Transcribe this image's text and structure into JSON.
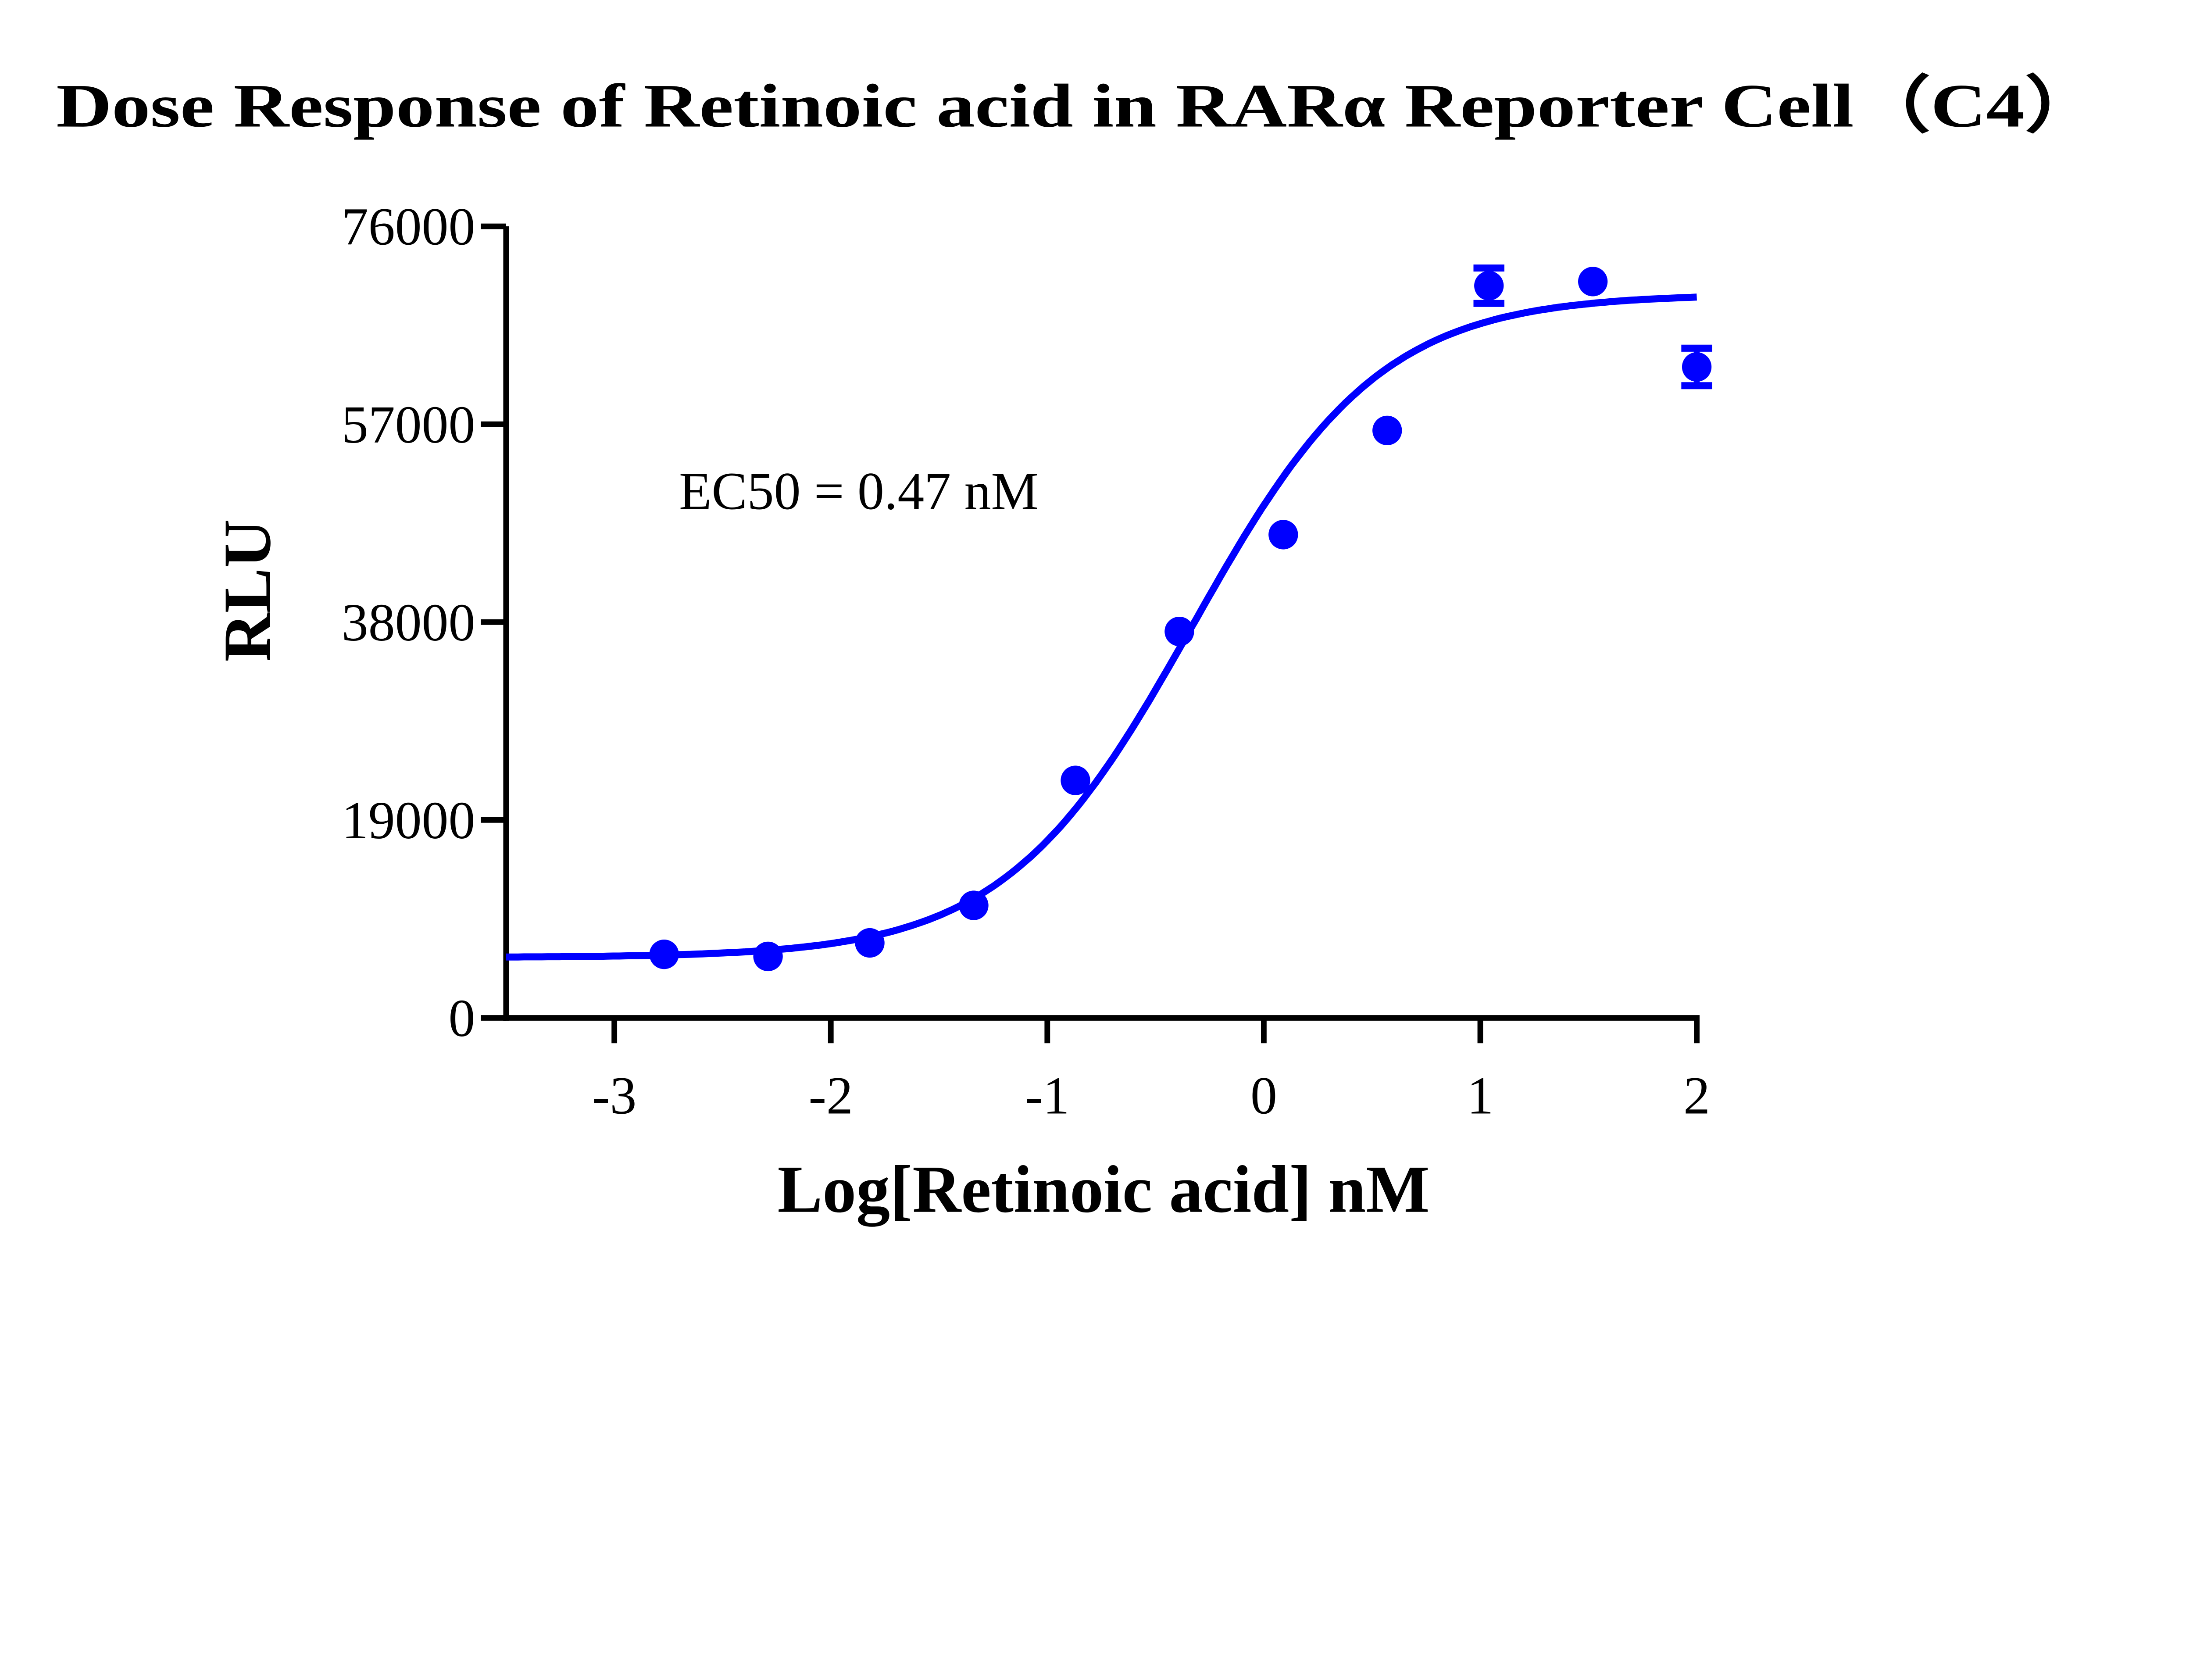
{
  "chart_data": {
    "type": "scatter",
    "title": "Dose Response of Retinoic acid in RARα Reporter Cell（C4）",
    "xlabel": "Log[Retinoic acid] nM",
    "ylabel": "RLU",
    "xlim": [
      -3.5,
      2
    ],
    "ylim": [
      0,
      76000
    ],
    "xticks": [
      -3,
      -2,
      -1,
      0,
      1,
      2
    ],
    "xtick_labels": [
      "-3",
      "-2",
      "-1",
      "0",
      "1",
      "2"
    ],
    "yticks": [
      0,
      19000,
      38000,
      57000,
      76000
    ],
    "ytick_labels": [
      "0",
      "19000",
      "38000",
      "57000",
      "76000"
    ],
    "grid": false,
    "color": "#0000ff",
    "annotation": "EC50 = 0.47 nM",
    "points": [
      {
        "x": -2.77,
        "y": 6100,
        "err": 0
      },
      {
        "x": -2.29,
        "y": 5900,
        "err": 0
      },
      {
        "x": -1.82,
        "y": 7200,
        "err": 0
      },
      {
        "x": -1.34,
        "y": 10800,
        "err": 0
      },
      {
        "x": -0.87,
        "y": 22800,
        "err": 0
      },
      {
        "x": -0.39,
        "y": 37100,
        "err": 0
      },
      {
        "x": 0.09,
        "y": 46400,
        "err": 0
      },
      {
        "x": 0.57,
        "y": 56400,
        "err": 0
      },
      {
        "x": 1.04,
        "y": 70300,
        "err": 1700
      },
      {
        "x": 1.52,
        "y": 70700,
        "err": 0
      },
      {
        "x": 2.0,
        "y": 62500,
        "err": 1800
      }
    ],
    "fit": {
      "model": "four-parameter logistic",
      "bottom": 5800,
      "top": 69500,
      "logEC50": -0.33,
      "hill": 1.0,
      "x_range": [
        -3.5,
        2
      ]
    }
  }
}
